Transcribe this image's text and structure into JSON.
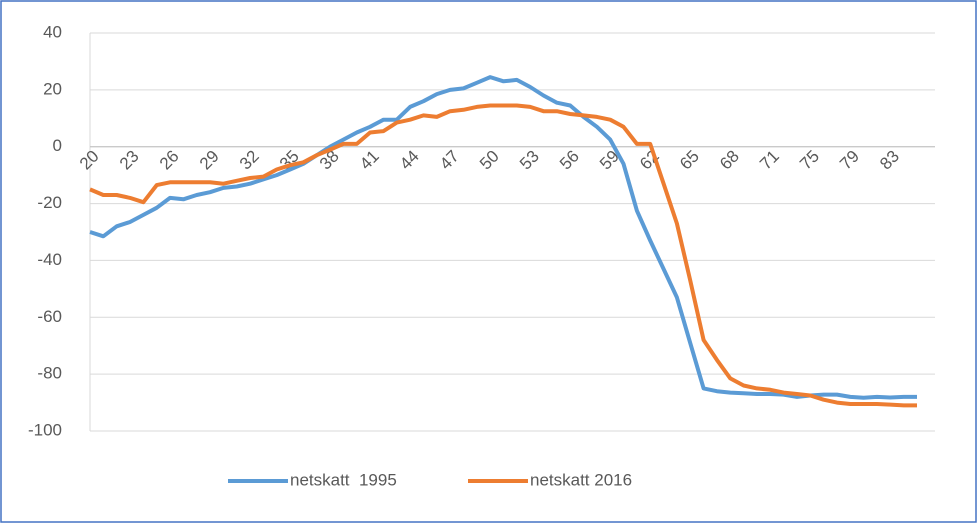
{
  "chart_data": {
    "type": "line",
    "categories": [
      "20",
      null,
      null,
      "23",
      null,
      null,
      "26",
      null,
      null,
      "29",
      null,
      null,
      "32",
      null,
      null,
      "35",
      null,
      null,
      "38",
      null,
      null,
      "41",
      null,
      null,
      "44",
      null,
      null,
      "47",
      null,
      null,
      "50",
      null,
      null,
      "53",
      null,
      null,
      "56",
      null,
      null,
      "59",
      null,
      null,
      "62",
      null,
      null,
      "65",
      null,
      null,
      "68",
      null,
      null,
      "71",
      null,
      null,
      "75",
      null,
      null,
      "79",
      null,
      null,
      "83",
      null,
      null
    ],
    "series": [
      {
        "name": "netskatt  1995",
        "color": "#5b9bd5",
        "values": [
          -30,
          -31.5,
          -28,
          -26.5,
          -24,
          -21.5,
          -18,
          -18.5,
          -17,
          -16,
          -14.5,
          -14,
          -13,
          -11.5,
          -10,
          -8,
          -6,
          -3,
          0,
          2.5,
          5,
          7,
          9.5,
          9.5,
          14,
          16,
          18.5,
          20,
          20.5,
          22.5,
          24.5,
          23,
          23.5,
          21,
          18,
          15.5,
          14.5,
          10.5,
          7,
          2.5,
          -6,
          -22.5,
          -33,
          -43,
          -53,
          -69,
          -85,
          -86,
          -86.5,
          -86.7,
          -87,
          -87,
          -87.2,
          -88,
          -87.5,
          -87.2,
          -87.2,
          -88,
          -88.3,
          -88,
          -88.2,
          -88,
          -88
        ]
      },
      {
        "name": "netskatt 2016",
        "color": "#ed7d31",
        "values": [
          -15,
          -17,
          -17,
          -18,
          -19.5,
          -13.5,
          -12.5,
          -12.5,
          -12.5,
          -12.5,
          -13,
          -12,
          -11,
          -10.5,
          -8,
          -6.5,
          -5.5,
          -3,
          -1,
          1,
          1,
          5,
          5.5,
          8.5,
          9.5,
          11,
          10.5,
          12.5,
          13,
          14,
          14.5,
          14.5,
          14.5,
          14,
          12.5,
          12.5,
          11.5,
          11,
          10.5,
          9.5,
          7,
          1,
          1,
          -13,
          -27,
          -47,
          -68,
          -75,
          -81.5,
          -84,
          -85,
          -85.5,
          -86.5,
          -87,
          -87.5,
          -89,
          -90,
          -90.5,
          -90.5,
          -90.5,
          -90.7,
          -91,
          -91
        ]
      }
    ],
    "ylim": [
      -100,
      40
    ],
    "yticks": [
      -100,
      -80,
      -60,
      -40,
      -20,
      0,
      20,
      40
    ],
    "grid": true,
    "legend": "bottom"
  }
}
